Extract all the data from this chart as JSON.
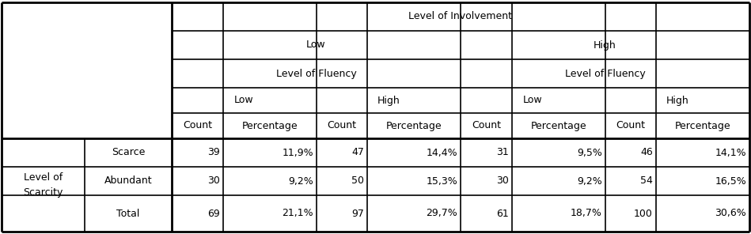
{
  "level1_header": "Level of Involvement",
  "level2_low": "Low",
  "level2_high": "High",
  "level3_header": "Level of Fluency",
  "level4_headers": [
    "Low",
    "High",
    "Low",
    "High"
  ],
  "col_headers": [
    "Count",
    "Percentage",
    "Count",
    "Percentage",
    "Count",
    "Percentage",
    "Count",
    "Percentage"
  ],
  "row_label1_lines": [
    "Level of",
    "Scarcity"
  ],
  "row_label2": [
    "Scarce",
    "Abundant",
    "Total"
  ],
  "data": [
    [
      "39",
      "11,9%",
      "47",
      "14,4%",
      "31",
      "9,5%",
      "46",
      "14,1%"
    ],
    [
      "30",
      "9,2%",
      "50",
      "15,3%",
      "30",
      "9,2%",
      "54",
      "16,5%"
    ],
    [
      "69",
      "21,1%",
      "97",
      "29,7%",
      "61",
      "18,7%",
      "100",
      "30,6%"
    ]
  ],
  "border_color": "#000000",
  "bg_color": "#ffffff",
  "font_size": 9
}
